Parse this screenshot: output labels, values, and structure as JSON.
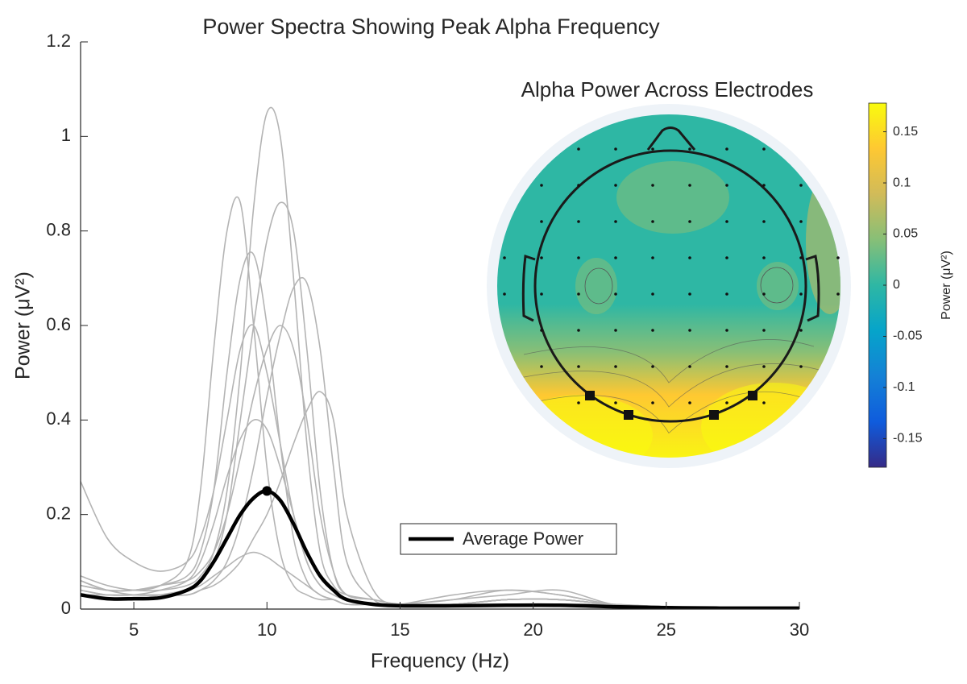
{
  "chart_data": {
    "type": "line",
    "title": "Power Spectra Showing Peak Alpha Frequency",
    "xlabel": "Frequency (Hz)",
    "ylabel": "Power (μV²)",
    "xlim": [
      3,
      30
    ],
    "xticks": [
      5,
      10,
      15,
      20,
      25,
      30
    ],
    "ylim": [
      0,
      1.2
    ],
    "yticks": [
      0,
      0.2,
      0.4,
      0.6,
      0.8,
      1,
      1.2
    ],
    "x": [
      3,
      4,
      5,
      6,
      7,
      7.5,
      8,
      8.5,
      9,
      9.5,
      10,
      10.5,
      11,
      11.5,
      12,
      12.5,
      13,
      14,
      15,
      17,
      19,
      21,
      23,
      25,
      27,
      30
    ],
    "series": [
      {
        "color": "#b4b4b4",
        "values": [
          0.07,
          0.05,
          0.04,
          0.04,
          0.05,
          0.07,
          0.12,
          0.25,
          0.5,
          0.85,
          1.05,
          1.0,
          0.7,
          0.35,
          0.12,
          0.05,
          0.03,
          0.02,
          0.01,
          0.01,
          0.02,
          0.02,
          0.01,
          0.005,
          0.003,
          0.002
        ]
      },
      {
        "color": "#b4b4b4",
        "values": [
          0.05,
          0.04,
          0.04,
          0.05,
          0.1,
          0.25,
          0.55,
          0.8,
          0.86,
          0.6,
          0.3,
          0.12,
          0.05,
          0.03,
          0.02,
          0.02,
          0.01,
          0.01,
          0.01,
          0.01,
          0.01,
          0.01,
          0.01,
          0.005,
          0.003,
          0.002
        ]
      },
      {
        "color": "#b4b4b4",
        "values": [
          0.06,
          0.04,
          0.03,
          0.03,
          0.04,
          0.06,
          0.1,
          0.2,
          0.4,
          0.6,
          0.78,
          0.86,
          0.8,
          0.55,
          0.25,
          0.08,
          0.03,
          0.02,
          0.01,
          0.01,
          0.02,
          0.02,
          0.01,
          0.005,
          0.003,
          0.002
        ]
      },
      {
        "color": "#b4b4b4",
        "values": [
          0.04,
          0.03,
          0.03,
          0.03,
          0.03,
          0.04,
          0.06,
          0.1,
          0.18,
          0.3,
          0.45,
          0.58,
          0.68,
          0.69,
          0.55,
          0.3,
          0.1,
          0.02,
          0.01,
          0.01,
          0.02,
          0.02,
          0.01,
          0.005,
          0.003,
          0.002
        ]
      },
      {
        "color": "#b4b4b4",
        "values": [
          0.03,
          0.03,
          0.03,
          0.03,
          0.03,
          0.04,
          0.05,
          0.07,
          0.1,
          0.15,
          0.2,
          0.27,
          0.35,
          0.42,
          0.46,
          0.4,
          0.2,
          0.04,
          0.01,
          0.01,
          0.02,
          0.02,
          0.01,
          0.005,
          0.003,
          0.002
        ]
      },
      {
        "color": "#b4b4b4",
        "values": [
          0.27,
          0.15,
          0.1,
          0.08,
          0.1,
          0.15,
          0.25,
          0.4,
          0.55,
          0.6,
          0.5,
          0.35,
          0.2,
          0.1,
          0.05,
          0.03,
          0.02,
          0.01,
          0.01,
          0.02,
          0.03,
          0.04,
          0.01,
          0.005,
          0.003,
          0.002
        ]
      },
      {
        "color": "#b4b4b4",
        "values": [
          0.05,
          0.04,
          0.04,
          0.05,
          0.07,
          0.12,
          0.25,
          0.5,
          0.7,
          0.75,
          0.6,
          0.35,
          0.15,
          0.06,
          0.03,
          0.02,
          0.01,
          0.01,
          0.01,
          0.02,
          0.04,
          0.03,
          0.01,
          0.005,
          0.003,
          0.002
        ]
      },
      {
        "color": "#b4b4b4",
        "values": [
          0.03,
          0.02,
          0.02,
          0.03,
          0.04,
          0.05,
          0.07,
          0.09,
          0.11,
          0.12,
          0.11,
          0.09,
          0.07,
          0.05,
          0.03,
          0.02,
          0.01,
          0.01,
          0.01,
          0.03,
          0.04,
          0.03,
          0.01,
          0.005,
          0.003,
          0.002
        ]
      },
      {
        "color": "#b4b4b4",
        "values": [
          0.06,
          0.04,
          0.04,
          0.05,
          0.06,
          0.08,
          0.12,
          0.2,
          0.32,
          0.45,
          0.55,
          0.6,
          0.55,
          0.4,
          0.2,
          0.08,
          0.03,
          0.02,
          0.01,
          0.01,
          0.02,
          0.02,
          0.01,
          0.005,
          0.003,
          0.002
        ]
      },
      {
        "color": "#b4b4b4",
        "values": [
          0.04,
          0.03,
          0.03,
          0.04,
          0.06,
          0.1,
          0.18,
          0.28,
          0.36,
          0.4,
          0.38,
          0.3,
          0.2,
          0.1,
          0.05,
          0.03,
          0.02,
          0.01,
          0.01,
          0.01,
          0.02,
          0.02,
          0.01,
          0.005,
          0.003,
          0.002
        ]
      },
      {
        "name": "Average Power",
        "color": "#000000",
        "values": [
          0.03,
          0.022,
          0.022,
          0.024,
          0.04,
          0.06,
          0.1,
          0.15,
          0.2,
          0.235,
          0.25,
          0.23,
          0.18,
          0.12,
          0.07,
          0.04,
          0.02,
          0.01,
          0.007,
          0.007,
          0.008,
          0.008,
          0.005,
          0.003,
          0.002,
          0.002
        ]
      }
    ],
    "peak": {
      "x": 10,
      "y": 0.25,
      "color": "#000000"
    },
    "legend": "bottom-center",
    "inset": {
      "title": "Alpha Power Across Electrodes",
      "colorbar_label": "Power (μV²)",
      "clim": [
        -0.178,
        0.178
      ],
      "cticks": [
        -0.15,
        -0.1,
        -0.05,
        0,
        0.05,
        0.1,
        0.15
      ],
      "colormap": [
        "#352a87",
        "#0f5cdd",
        "#1481d6",
        "#06a4ca",
        "#2eb7a4",
        "#87bf77",
        "#d1bb59",
        "#fec832",
        "#f9fb0e"
      ]
    }
  }
}
